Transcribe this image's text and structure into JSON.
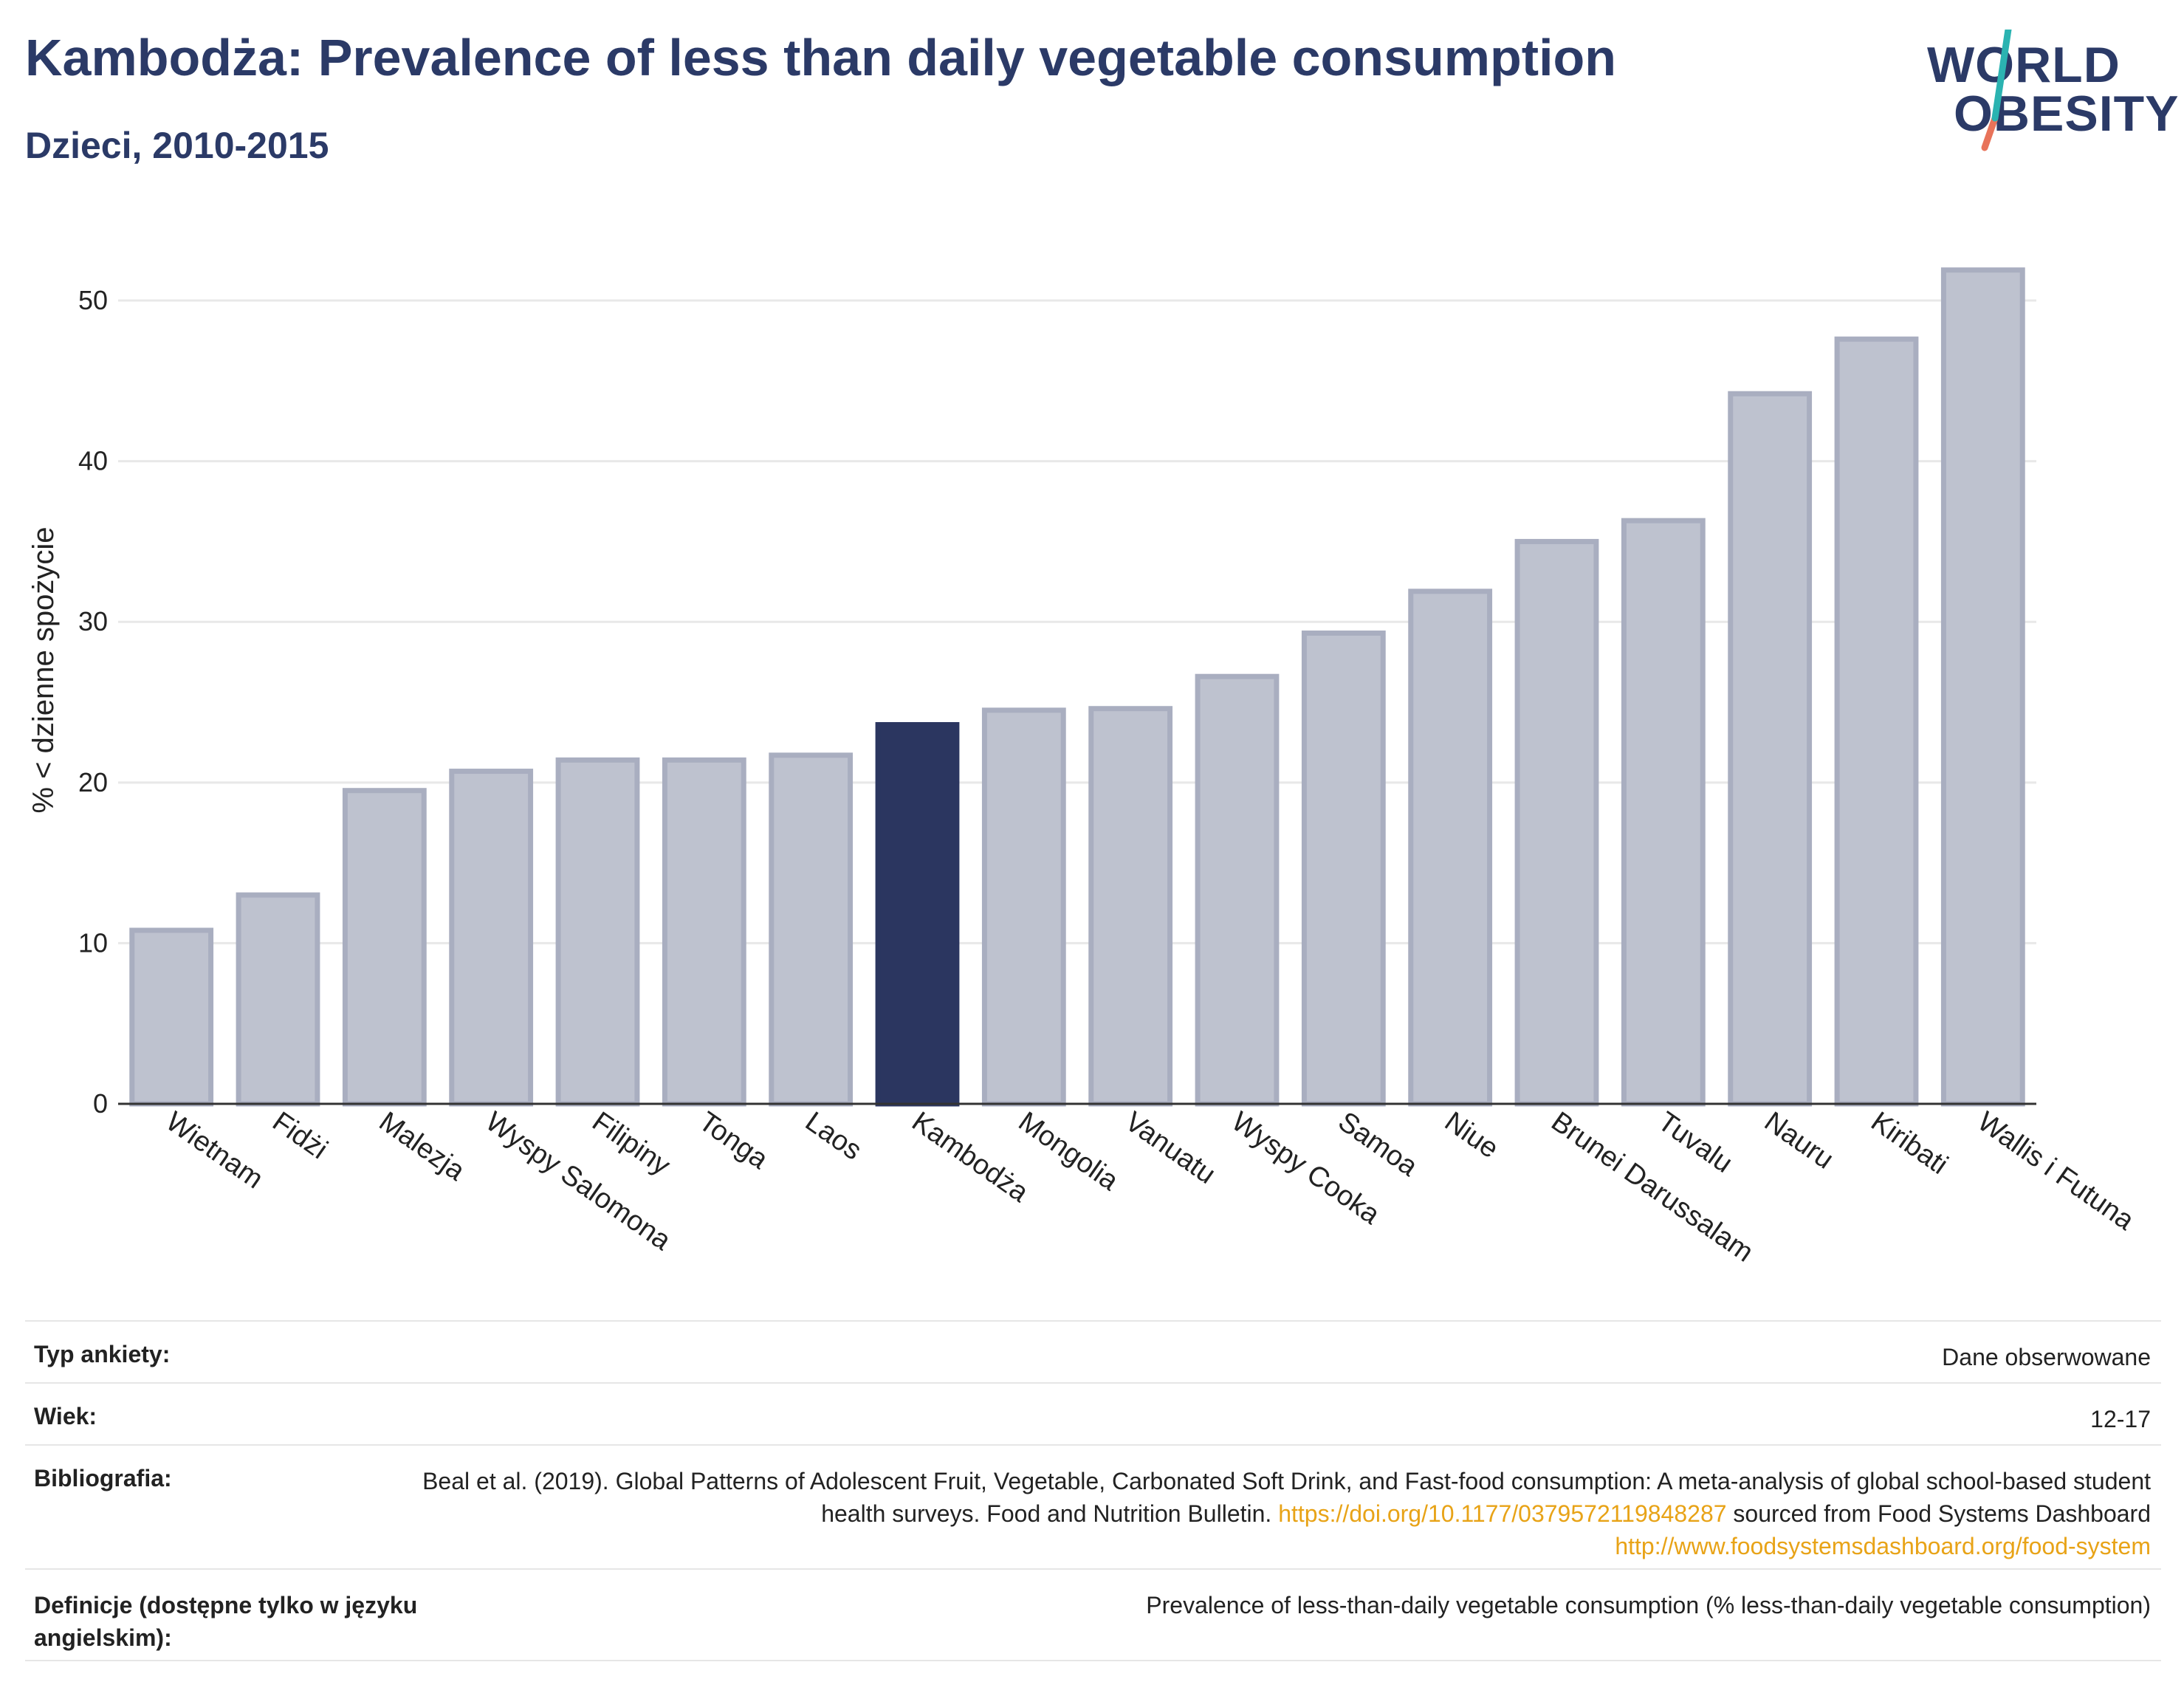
{
  "header": {
    "title": "Kambodża: Prevalence of less than daily vegetable consumption",
    "subtitle": "Dzieci, 2010-2015"
  },
  "logo": {
    "line1": "WORLD",
    "line2": "OBESITY",
    "accent_teal": "#2bb3b1",
    "accent_coral": "#e8735a"
  },
  "chart_data": {
    "type": "bar",
    "ylabel": "% < dzienne spożycie",
    "ylim": [
      0,
      54
    ],
    "yticks": [
      0,
      10,
      20,
      30,
      40,
      50
    ],
    "grid": true,
    "highlight": "Kambodża",
    "colors": {
      "bar": "#bec2cf",
      "bar_edge": "#a9aec0",
      "highlight": "#2b3660",
      "grid": "#e8e8e8",
      "axis": "#333333"
    },
    "categories": [
      "Wietnam",
      "Fidżi",
      "Malezja",
      "Wyspy Salomona",
      "Filipiny",
      "Tonga",
      "Laos",
      "Kambodża",
      "Mongolia",
      "Vanuatu",
      "Wyspy Cooka",
      "Samoa",
      "Niue",
      "Brunei Darussalam",
      "Tuvalu",
      "Nauru",
      "Kiribati",
      "Wallis i Futuna"
    ],
    "values": [
      10.8,
      13.0,
      19.5,
      20.7,
      21.4,
      21.4,
      21.7,
      23.6,
      24.5,
      24.6,
      26.6,
      29.3,
      31.9,
      35.0,
      36.3,
      44.2,
      47.6,
      51.9
    ]
  },
  "table": {
    "rows": [
      {
        "key": "Typ ankiety:",
        "value": "Dane obserwowane"
      },
      {
        "key": "Wiek:",
        "value": "12-17"
      },
      {
        "key": "Bibliografia:",
        "value_pre": "Beal et al. (2019). Global Patterns of Adolescent Fruit, Vegetable, Carbonated Soft Drink, and Fast-food consumption: A meta-analysis of global school-based student health surveys. Food and Nutrition Bulletin.",
        "link1": "https://doi.org/10.1177/0379572119848287",
        "value_mid": "sourced from Food Systems Dashboard",
        "link2": "http://www.foodsystemsdashboard.org/food-system"
      },
      {
        "key": "Definicje (dostępne tylko w języku angielskim):",
        "value": "Prevalence of less-than-daily vegetable consumption (% less-than-daily vegetable consumption)"
      }
    ]
  }
}
